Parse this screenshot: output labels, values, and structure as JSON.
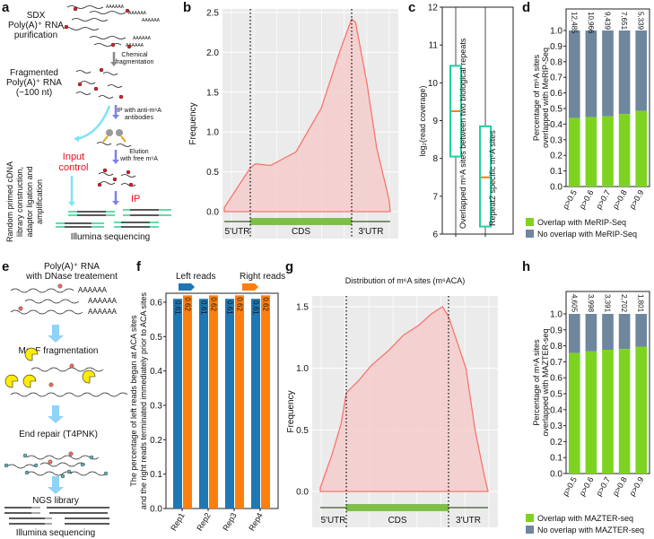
{
  "panels": {
    "a": "a",
    "b": "b",
    "c": "c",
    "d": "d",
    "e": "e",
    "f": "f",
    "g": "g",
    "h": "h"
  },
  "panel_a": {
    "step1": [
      "SDX",
      "Poly(A)⁺ RNA",
      "purification"
    ],
    "arrow1": [
      "Chemical",
      "fragmentation"
    ],
    "step2": [
      "Fragmented",
      "Poly(A)⁺ RNA",
      "(~100 nt)"
    ],
    "arrow2": [
      "IP with anti-m⁶A",
      "antibodies"
    ],
    "input_control": [
      "Input",
      "control"
    ],
    "arrow3": [
      "Elution",
      "with free m⁶A"
    ],
    "ip": "IP",
    "side_label": [
      "Random primed cDNA",
      "library construction,",
      "adaptor ligation and",
      "amplification"
    ],
    "bottom": "Illumina sequencing",
    "polyA": "AAAAAA"
  },
  "panel_e": {
    "title": [
      "Poly(A)⁺ RNA",
      "with DNase treatement"
    ],
    "polyA": "AAAAAA",
    "motif": "ACA",
    "step2": "MazF fragmentation",
    "step3": "End repair (T4PNK)",
    "step4": "NGS library",
    "bottom": "Illumina sequencing"
  },
  "colors": {
    "density_line": "#f8766d",
    "density_fill": "#f4cccc",
    "plot_bg": "#ebebeb",
    "cds": "#7cc142",
    "overlap": "#7ed321",
    "no_overlap": "#6f879e",
    "blue": "#1f77b4",
    "orange": "#ff7f0e",
    "box": "#1dd1a1",
    "median": "#ff7f0e"
  },
  "chart_data": [
    {
      "id": "b",
      "type": "area",
      "ylabel": "Frequency",
      "ylim": [
        0,
        2.5
      ],
      "yticks": [
        "0.0",
        "0.5",
        "1.0",
        "1.5",
        "2.0",
        "2.5"
      ],
      "regions": [
        "5'UTR",
        "CDS",
        "3'UTR"
      ],
      "x": [
        0,
        0.5,
        1,
        1.05,
        1.2,
        1.45,
        1.7,
        1.88,
        2,
        2.1,
        2.4,
        2.65,
        2.97,
        3
      ],
      "y": [
        0.05,
        0.3,
        0.55,
        0.6,
        0.58,
        0.75,
        1.3,
        2.0,
        2.42,
        2.38,
        1.6,
        0.8,
        0.15,
        0
      ]
    },
    {
      "id": "c",
      "type": "box",
      "ylabel": "log₂(read coverage)",
      "ylim": [
        6,
        12
      ],
      "yticks": [
        "6",
        "7",
        "8",
        "9",
        "10",
        "11",
        "12"
      ],
      "boxes": [
        {
          "label": "Overlapped m⁶A sites between two biological repeats",
          "q1": 8.05,
          "median": 9.25,
          "q3": 10.45,
          "min": 6,
          "max": 12
        },
        {
          "label": "Repeat2 specific m⁶A sites",
          "q1": 6.2,
          "median": 7.5,
          "q3": 8.85,
          "min": 6,
          "max": 12
        }
      ]
    },
    {
      "id": "d",
      "type": "bar",
      "stacked": true,
      "ylabel": [
        "Percentage of  m⁶A sites",
        "overlapped with MeRIP-Seq"
      ],
      "ylim": [
        0,
        1
      ],
      "yticks": [
        "0.0",
        "0.1",
        "0.2",
        "0.3",
        "0.4",
        "0.5",
        "0.6",
        "0.7",
        "0.8",
        "0.9",
        "1.0"
      ],
      "categories": [
        "ρ>0.5",
        "ρ>0.6",
        "ρ>0.7",
        "ρ>0.8",
        "ρ>0.9"
      ],
      "counts": [
        "12,485",
        "10,966",
        "9,439",
        "7,651",
        "5,339"
      ],
      "series": [
        {
          "name": "Overlap with MeRIP-Seq",
          "values": [
            0.44,
            0.445,
            0.45,
            0.465,
            0.485
          ]
        },
        {
          "name": "No overlap with MeRIP-Seq",
          "values": [
            0.56,
            0.555,
            0.55,
            0.535,
            0.515
          ]
        }
      ],
      "legend": "bottom"
    },
    {
      "id": "f",
      "type": "bar",
      "ylabel": [
        "The percentage of left reads began at ACA sites",
        "and the right reads terminated immediately prior to ACA sites"
      ],
      "ylim": [
        0,
        0.62
      ],
      "yticks": [
        "0.0",
        "0.1",
        "0.2",
        "0.3",
        "0.4",
        "0.5",
        "0.6"
      ],
      "categories": [
        "Rep1",
        "Rep2",
        "Rep3",
        "Rep4"
      ],
      "series": [
        {
          "name": "Left reads",
          "values": [
            0.61,
            0.61,
            0.61,
            0.61
          ],
          "labels": [
            "0.61",
            "0.61",
            "0.61",
            "0.61"
          ]
        },
        {
          "name": "Right reads",
          "values": [
            0.62,
            0.62,
            0.62,
            0.62
          ],
          "labels": [
            "0.62",
            "0.62",
            "0.62",
            "0.62"
          ]
        }
      ],
      "legend": "top"
    },
    {
      "id": "g",
      "type": "area",
      "title": "Distribution of m⁶A sites (m⁶ACA)",
      "ylabel": "Frequency",
      "ylim": [
        0,
        1.5
      ],
      "yticks": [
        "0.0",
        "0.5",
        "1.0",
        "1.5"
      ],
      "regions": [
        "5'UTR",
        "CDS",
        "3'UTR"
      ],
      "x": [
        0,
        0.45,
        0.8,
        1,
        1.12,
        1.24,
        1.42,
        1.56,
        1.71,
        1.83,
        1.94,
        2,
        2.44,
        2.67,
        2.89,
        3
      ],
      "y": [
        0.03,
        0.3,
        0.55,
        0.8,
        0.9,
        1.02,
        1.15,
        1.27,
        1.35,
        1.44,
        1.5,
        1.42,
        1.0,
        0.5,
        0.15,
        0
      ]
    },
    {
      "id": "h",
      "type": "bar",
      "stacked": true,
      "ylabel": [
        "Percentage of  m⁶A sites",
        "overlapped with MAZTER-seq"
      ],
      "ylim": [
        0,
        1
      ],
      "yticks": [
        "0.0",
        "0.1",
        "0.2",
        "0.3",
        "0.4",
        "0.5",
        "0.6",
        "0.7",
        "0.8",
        "0.9",
        "1.0"
      ],
      "categories": [
        "ρ>0.5",
        "ρ>0.6",
        "ρ>0.7",
        "ρ>0.8",
        "ρ>0.9"
      ],
      "counts": [
        "4,605",
        "3,998",
        "3,391",
        "2,702",
        "1,801"
      ],
      "series": [
        {
          "name": "Overlap with MAZTER-seq",
          "values": [
            0.755,
            0.765,
            0.775,
            0.78,
            0.795
          ]
        },
        {
          "name": "No overlap with MAZTER-seq",
          "values": [
            0.245,
            0.235,
            0.225,
            0.22,
            0.205
          ]
        }
      ],
      "legend": "bottom"
    }
  ]
}
